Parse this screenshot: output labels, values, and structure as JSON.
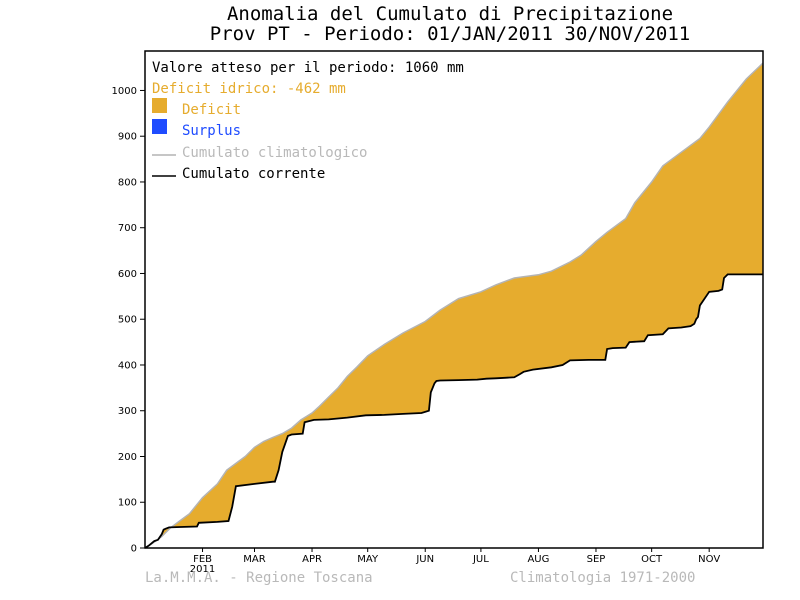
{
  "title_line1": "Anomalia del Cumulato di Precipitazione",
  "title_line2": "Prov PT - Periodo: 01/JAN/2011 30/NOV/2011",
  "legend": {
    "expected": "Valore atteso per il periodo: 1060 mm",
    "deficit_text": "Deficit idrico: -462 mm",
    "deficit_label": "Deficit",
    "surplus_label": "Surplus",
    "climatological_label": "Cumulato climatologico",
    "current_label": "Cumulato corrente"
  },
  "footer": {
    "left": "La.M.M.A. - Regione Toscana",
    "right": "Climatologia 1971-2000"
  },
  "colors": {
    "deficit": "#e6ac2e",
    "surplus": "#1f4cff",
    "climatological": "#b4b4b4",
    "current": "#000000",
    "deficit_text": "#e6ac2e",
    "surplus_text": "#1f4cff",
    "climatological_text": "#b9b9b9"
  },
  "chart_data": {
    "type": "area",
    "x_unit": "day of year 2011",
    "xlim": [
      1,
      334
    ],
    "ylim": [
      0,
      1060
    ],
    "yticks": [
      0,
      100,
      200,
      300,
      400,
      500,
      600,
      700,
      800,
      900,
      1000
    ],
    "xticks": [
      {
        "day": 32,
        "label": "FEB",
        "sublabel": "2011"
      },
      {
        "day": 60,
        "label": "MAR"
      },
      {
        "day": 91,
        "label": "APR"
      },
      {
        "day": 121,
        "label": "MAY"
      },
      {
        "day": 152,
        "label": "JUN"
      },
      {
        "day": 182,
        "label": "JUL"
      },
      {
        "day": 213,
        "label": "AUG"
      },
      {
        "day": 244,
        "label": "SEP"
      },
      {
        "day": 274,
        "label": "OCT"
      },
      {
        "day": 305,
        "label": "NOV"
      }
    ],
    "series": [
      {
        "name": "Cumulato climatologico",
        "x": [
          1,
          5,
          10,
          15,
          20,
          25,
          32,
          40,
          45,
          50,
          55,
          60,
          65,
          70,
          75,
          80,
          85,
          91,
          95,
          100,
          105,
          110,
          115,
          121,
          130,
          140,
          152,
          160,
          170,
          182,
          190,
          200,
          213,
          220,
          230,
          236,
          244,
          250,
          260,
          265,
          274,
          280,
          290,
          300,
          305,
          315,
          325,
          334
        ],
        "values": [
          0,
          10,
          25,
          45,
          60,
          75,
          110,
          140,
          170,
          185,
          200,
          220,
          233,
          242,
          250,
          262,
          280,
          295,
          310,
          330,
          350,
          375,
          395,
          420,
          445,
          470,
          495,
          520,
          545,
          560,
          575,
          590,
          597,
          605,
          625,
          640,
          670,
          690,
          720,
          755,
          800,
          835,
          865,
          895,
          920,
          975,
          1025,
          1060
        ]
      },
      {
        "name": "Cumulato corrente",
        "x": [
          1,
          3,
          6,
          8,
          10,
          11,
          12,
          14,
          20,
          29,
          30,
          40,
          46,
          48,
          50,
          60,
          70,
          71,
          73,
          75,
          78,
          80,
          86,
          87,
          92,
          100,
          110,
          120,
          130,
          140,
          150,
          154,
          155,
          157,
          158,
          160,
          170,
          180,
          185,
          190,
          195,
          200,
          203,
          205,
          210,
          220,
          226,
          230,
          240,
          249,
          250,
          253,
          260,
          262,
          270,
          272,
          280,
          283,
          290,
          295,
          297,
          298,
          299,
          300,
          305,
          310,
          312,
          313,
          315,
          334
        ],
        "values": [
          0,
          5,
          15,
          18,
          30,
          40,
          42,
          45,
          46,
          47,
          55,
          57,
          59,
          90,
          135,
          140,
          145,
          145,
          170,
          210,
          245,
          248,
          250,
          275,
          280,
          281,
          285,
          290,
          291,
          293,
          295,
          300,
          340,
          360,
          365,
          366,
          367,
          368,
          370,
          371,
          372,
          373,
          380,
          385,
          390,
          395,
          400,
          410,
          411,
          411,
          435,
          437,
          438,
          450,
          452,
          465,
          467,
          480,
          482,
          485,
          490,
          500,
          505,
          530,
          560,
          562,
          565,
          590,
          598,
          598
        ]
      }
    ],
    "grid": false,
    "legend_position": "top-left"
  }
}
